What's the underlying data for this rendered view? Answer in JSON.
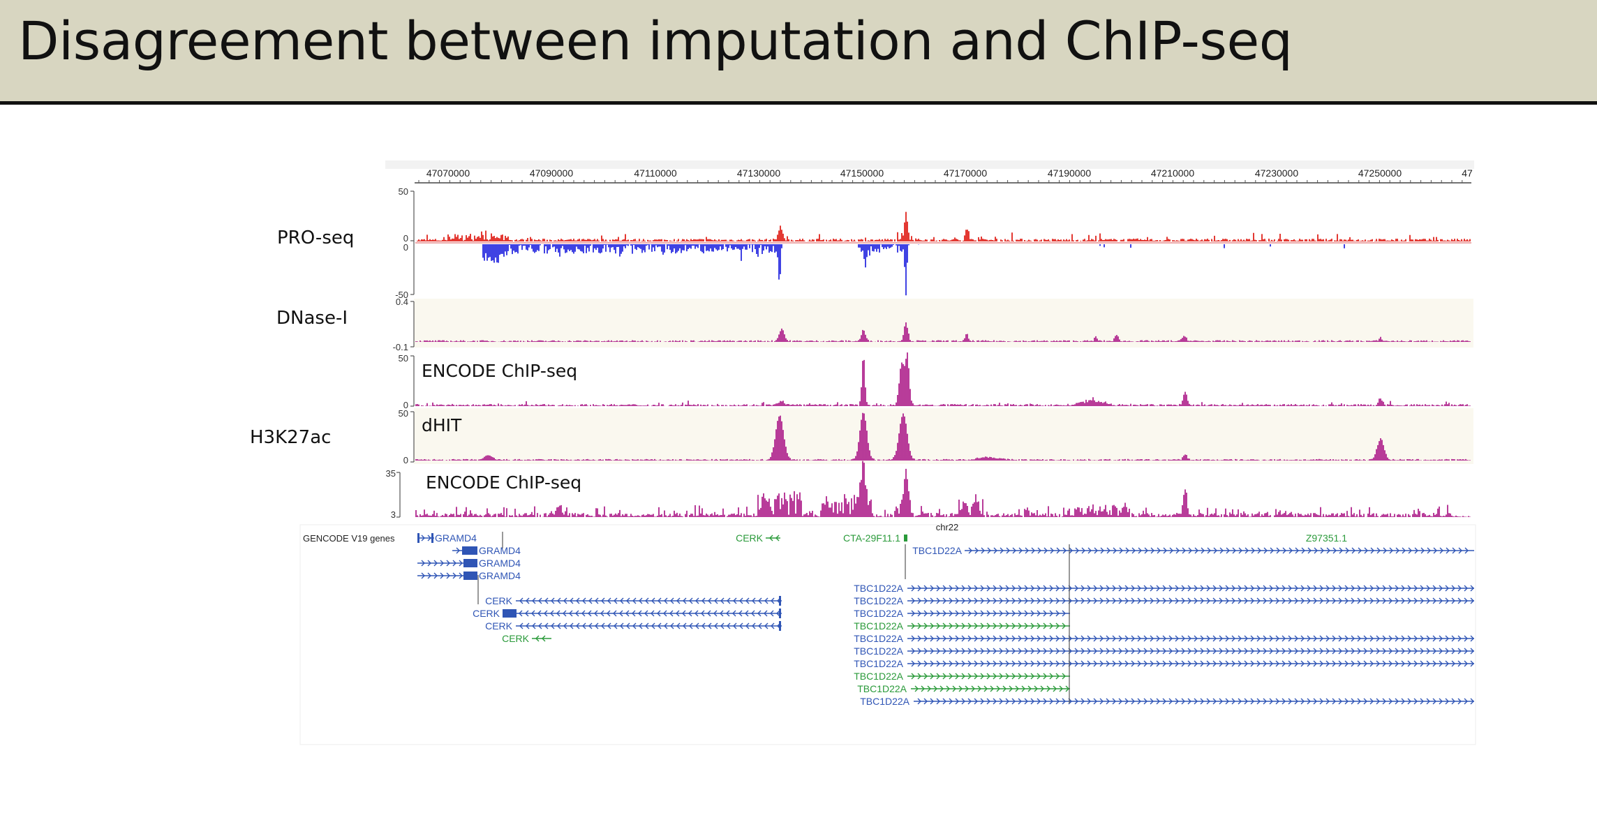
{
  "slide": {
    "title": "Disagreement between imputation and ChIP-seq"
  },
  "labels": {
    "proseq": "PRO-seq",
    "dnase": "DNase-I",
    "h3k27ac": "H3K27ac"
  },
  "tracks": {
    "encode1": {
      "title": "ENCODE ChIP-seq"
    },
    "dhit": {
      "title": "dHIT"
    },
    "encode2": {
      "title": "ENCODE ChIP-seq"
    }
  },
  "ruler": {
    "ticks": [
      "47070000",
      "47090000",
      "47110000",
      "47130000",
      "47150000",
      "47170000",
      "47190000",
      "47210000",
      "47230000",
      "47250000",
      "47"
    ]
  },
  "scales": {
    "proseq_top": "50",
    "proseq_zero1": "0",
    "proseq_zero2": "0",
    "proseq_bottom": "-50",
    "dnase_top": "0.4",
    "dnase_bottom": "-0.1",
    "encode1_top": "50",
    "encode1_zero": "0",
    "dhit_top": "50",
    "dhit_zero": "0",
    "encode2_top": "35",
    "encode2_bottom": "3"
  },
  "genes": {
    "track_title": "GENCODE V19 genes",
    "chrom": "chr22",
    "left": [
      "GRAMD4",
      "GRAMD4",
      "GRAMD4",
      "GRAMD4",
      "CERK",
      "CERK",
      "CERK",
      "CERK"
    ],
    "cerk_top": "CERK",
    "cta": "CTA-29F11.1",
    "z97": "Z97351.1",
    "tbc": [
      "TBC1D22A",
      "TBC1D22A",
      "TBC1D22A",
      "TBC1D22A",
      "TBC1D22A",
      "TBC1D22A",
      "TBC1D22A",
      "TBC1D22A",
      "TBC1D22A",
      "TBC1D22A",
      "TBC1D22A"
    ]
  },
  "colors": {
    "pro_plus": "#e0231c",
    "pro_minus": "#2b2ee0",
    "signal": "#b0268e",
    "gene_blue": "#2f55b5",
    "gene_green": "#2a9a3a",
    "track_bg": "#faf8ef"
  }
}
